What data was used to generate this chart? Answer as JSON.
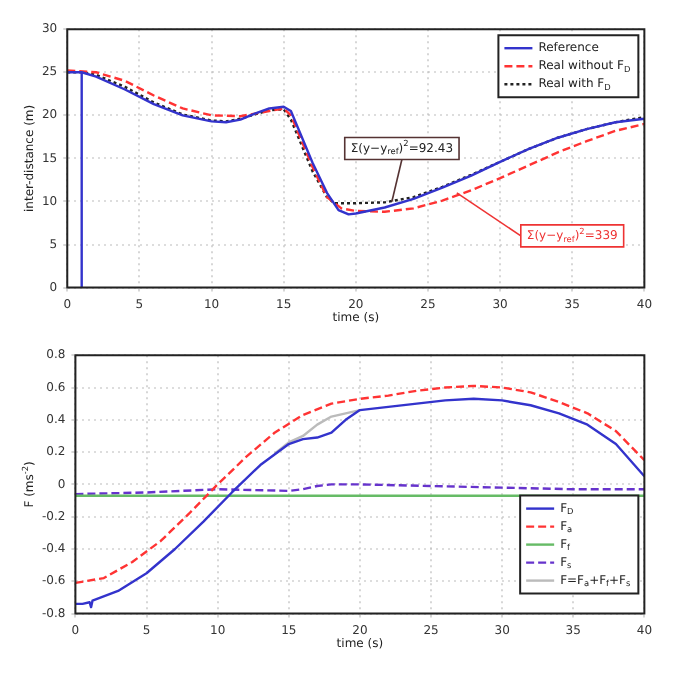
{
  "chart_data": [
    {
      "type": "line",
      "xlabel": "time (s)",
      "ylabel": "inter-distance (m)",
      "xlim": [
        0,
        40
      ],
      "xticks": [
        0,
        5,
        10,
        15,
        20,
        25,
        30,
        35,
        40
      ],
      "ylim": [
        0,
        30
      ],
      "yticks": [
        0,
        5,
        10,
        15,
        20,
        25,
        30
      ],
      "grid": true,
      "legend": "top right",
      "marker": "none",
      "series": [
        {
          "name": "Reference",
          "color": "#3333cc",
          "line_style": "solid",
          "x": [
            0,
            1,
            1,
            1,
            2,
            4,
            6,
            8,
            10,
            11,
            12,
            13,
            14,
            15,
            15.5,
            16,
            17,
            18,
            18.8,
            19.5,
            20,
            22,
            24,
            26,
            28,
            30,
            32,
            34,
            36,
            38,
            40
          ],
          "values": [
            25,
            25,
            0,
            25,
            24.5,
            23,
            21.3,
            20,
            19.3,
            19.2,
            19.5,
            20.2,
            20.8,
            21,
            20.5,
            18.5,
            14.5,
            11,
            9,
            8.5,
            8.6,
            9.3,
            10.3,
            11.6,
            13,
            14.6,
            16.1,
            17.4,
            18.4,
            19.2,
            19.6
          ]
        },
        {
          "name": "Real without F$_{D}$",
          "color": "#ff3333",
          "line_style": "dashed",
          "x": [
            0,
            2,
            4,
            6,
            8,
            10,
            12,
            14,
            15,
            15.5,
            16,
            17,
            18,
            19,
            20,
            22,
            24,
            26,
            28,
            30,
            32,
            34,
            36,
            38,
            40
          ],
          "values": [
            25.2,
            25,
            24,
            22.3,
            20.8,
            20,
            19.9,
            20.5,
            20.8,
            20,
            18,
            14,
            10.5,
            9.2,
            8.9,
            8.8,
            9.2,
            10.1,
            11.3,
            12.7,
            14.2,
            15.7,
            17,
            18.2,
            19
          ]
        },
        {
          "name": "Real with F$_{D}$",
          "color": "#222222",
          "line_style": "dotted",
          "x": [
            0,
            1,
            2,
            4,
            6,
            8,
            10,
            11,
            12,
            13,
            14,
            15,
            15.5,
            16,
            17,
            18,
            18.5,
            20,
            22,
            24,
            26,
            28,
            30,
            32,
            34,
            36,
            38,
            40
          ],
          "values": [
            25,
            25,
            24.7,
            23.3,
            21.5,
            20.1,
            19.4,
            19.3,
            19.6,
            20.1,
            20.6,
            20.7,
            19.5,
            17.5,
            13.5,
            10.5,
            9.8,
            9.8,
            9.9,
            10.5,
            11.7,
            13.1,
            14.6,
            16.1,
            17.4,
            18.4,
            19.2,
            19.8
          ]
        }
      ],
      "annotations": [
        {
          "text": "Σ(y−y$_{ref}$)$^{2}$=92.43",
          "x": 22.5,
          "y": 10
        },
        {
          "text": "Σ(y−y$_{ref}$)$^{2}$=339",
          "x": 27,
          "y": 11
        }
      ]
    },
    {
      "type": "line",
      "xlabel": "time (s)",
      "ylabel": "F (ms$^{-2}$)",
      "xlim": [
        0,
        40
      ],
      "xticks": [
        0,
        5,
        10,
        15,
        20,
        25,
        30,
        35,
        40
      ],
      "ylim": [
        -0.8,
        0.8
      ],
      "yticks": [
        -0.8,
        -0.6,
        -0.4,
        -0.2,
        0,
        0.2,
        0.4,
        0.6,
        0.8
      ],
      "grid": true,
      "legend": "bottom right",
      "marker": "none",
      "series": [
        {
          "name": "F$_{D}$",
          "color": "#3333cc",
          "line_style": "solid",
          "x": [
            0,
            0.5,
            1,
            1.1,
            1.2,
            3,
            5,
            7,
            9,
            11,
            13,
            15,
            16,
            17,
            18,
            19,
            20,
            22,
            24,
            26,
            28,
            30,
            32,
            34,
            36,
            38,
            40
          ],
          "values": [
            -0.74,
            -0.74,
            -0.73,
            -0.76,
            -0.72,
            -0.66,
            -0.55,
            -0.4,
            -0.23,
            -0.05,
            0.12,
            0.25,
            0.28,
            0.29,
            0.32,
            0.4,
            0.46,
            0.48,
            0.5,
            0.52,
            0.53,
            0.52,
            0.49,
            0.44,
            0.37,
            0.25,
            0.05
          ]
        },
        {
          "name": "F$_{a}$",
          "color": "#ff3333",
          "line_style": "dashed",
          "x": [
            0,
            2,
            4,
            6,
            8,
            10,
            12,
            14,
            16,
            18,
            20,
            22,
            24,
            26,
            28,
            30,
            32,
            34,
            36,
            38,
            40
          ],
          "values": [
            -0.61,
            -0.58,
            -0.48,
            -0.35,
            -0.18,
            0,
            0.17,
            0.32,
            0.43,
            0.5,
            0.53,
            0.55,
            0.58,
            0.6,
            0.61,
            0.6,
            0.57,
            0.51,
            0.44,
            0.33,
            0.15
          ]
        },
        {
          "name": "F$_{f}$",
          "color": "#66bb66",
          "line_style": "solid",
          "x": [
            0,
            40
          ],
          "values": [
            -0.07,
            -0.07
          ]
        },
        {
          "name": "F$_{s}$",
          "color": "#6633cc",
          "line_style": "dashed",
          "x": [
            0,
            5,
            10,
            15,
            16,
            17,
            18,
            20,
            25,
            30,
            35,
            40
          ],
          "values": [
            -0.06,
            -0.05,
            -0.03,
            -0.04,
            -0.03,
            -0.01,
            0,
            0,
            -0.01,
            -0.02,
            -0.03,
            -0.03
          ]
        },
        {
          "name": "F=F$_{a}$+F$_{f}$+F$_{s}$",
          "color": "#bbbbbb",
          "line_style": "solid",
          "x": [
            14,
            15,
            16,
            17,
            18,
            19,
            20
          ],
          "values": [
            0.19,
            0.26,
            0.3,
            0.37,
            0.42,
            0.44,
            0.46
          ]
        }
      ]
    }
  ]
}
